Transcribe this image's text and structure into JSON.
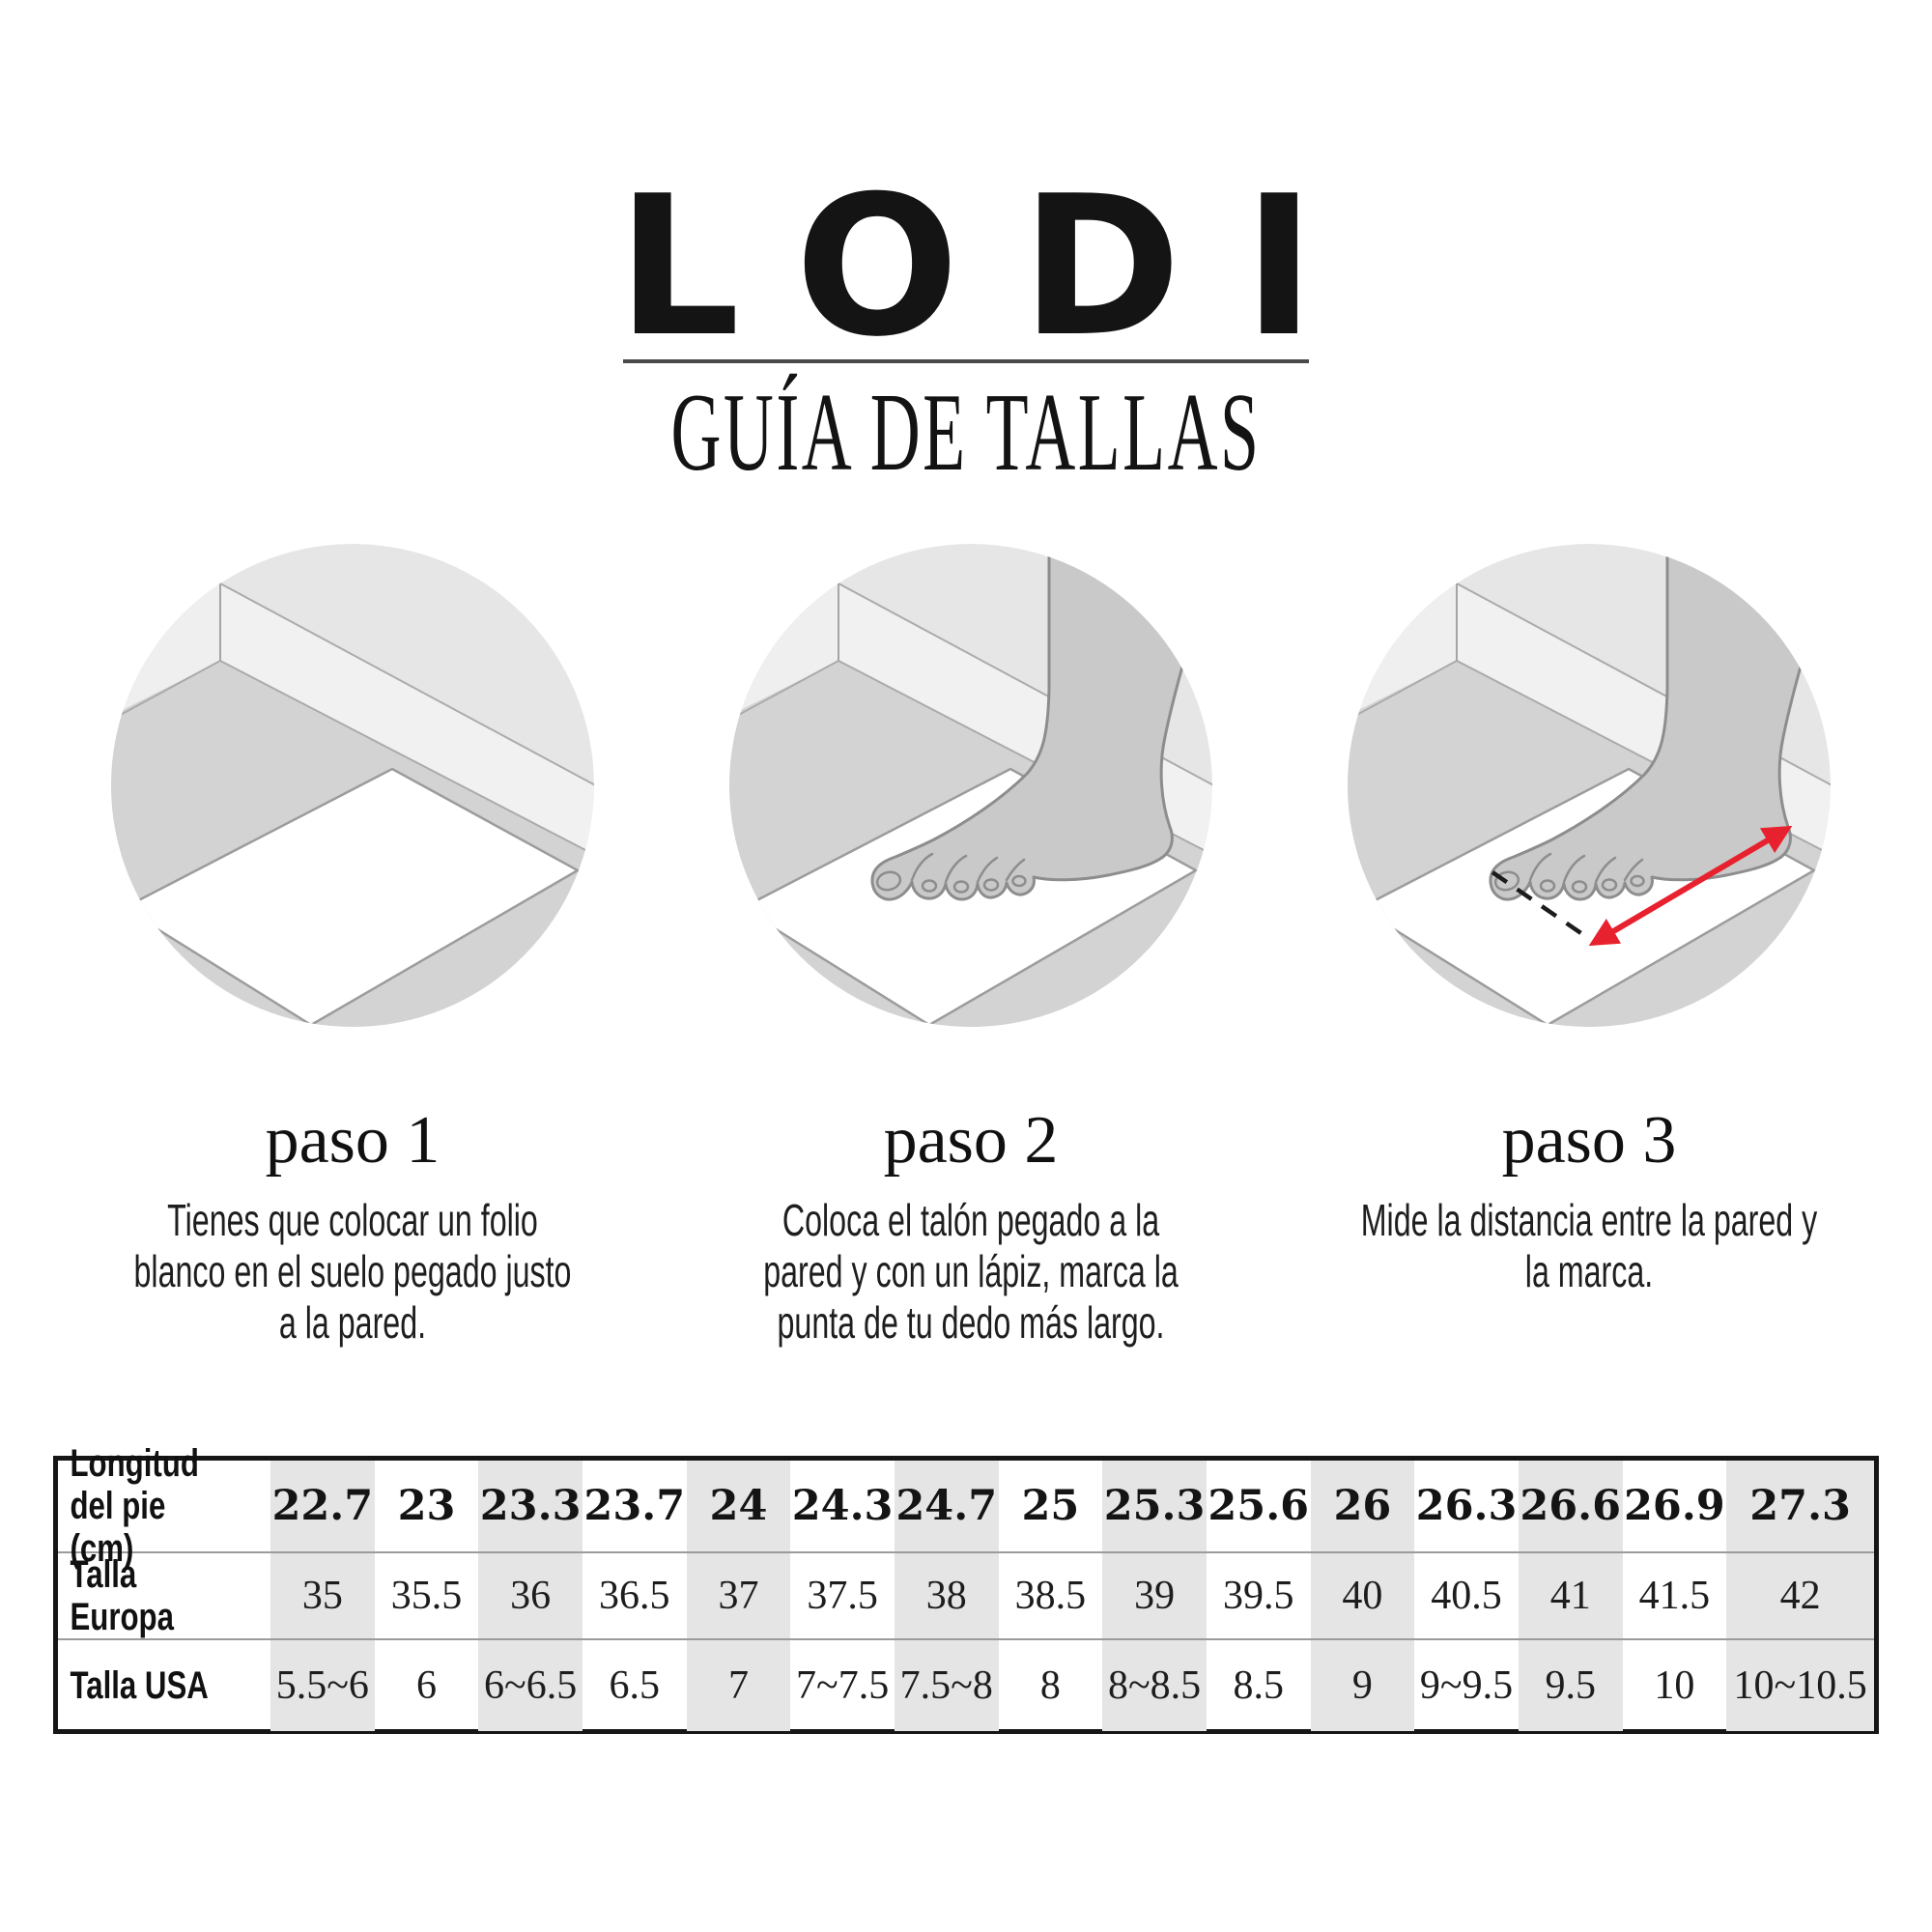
{
  "brand": {
    "logo": "LODI",
    "subtitle": "GUÍA DE TALLAS"
  },
  "steps": [
    {
      "heading": "paso 1",
      "description": "Tienes que colocar un folio\nblanco en el suelo pegado justo\na la pared."
    },
    {
      "heading": "paso 2",
      "description": "Coloca el talón pegado a la\npared y con un lápiz, marca la\npunta de tu dedo más largo."
    },
    {
      "heading": "paso 3",
      "description": "Mide la distancia entre la pared y\nla marca."
    }
  ],
  "size_table": {
    "row_labels": [
      "Longitud\ndel pie (cm)",
      "Talla Europa",
      "Talla USA"
    ],
    "foot_length_cm": [
      "22.7",
      "23",
      "23.3",
      "23.7",
      "24",
      "24.3",
      "24.7",
      "25",
      "25.3",
      "25.6",
      "26",
      "26.3",
      "26.6",
      "26.9",
      "27.3"
    ],
    "talla_europa": [
      "35",
      "35.5",
      "36",
      "36.5",
      "37",
      "37.5",
      "38",
      "38.5",
      "39",
      "39.5",
      "40",
      "40.5",
      "41",
      "41.5",
      "42"
    ],
    "talla_usa": [
      "5.5~6",
      "6",
      "6~6.5",
      "6.5",
      "7",
      "7~7.5",
      "7.5~8",
      "8",
      "8~8.5",
      "8.5",
      "9",
      "9~9.5",
      "9.5",
      "10",
      "10~10.5"
    ]
  },
  "colors": {
    "accent_red": "#e7212e",
    "shaded_column": "#e5e5e5"
  }
}
